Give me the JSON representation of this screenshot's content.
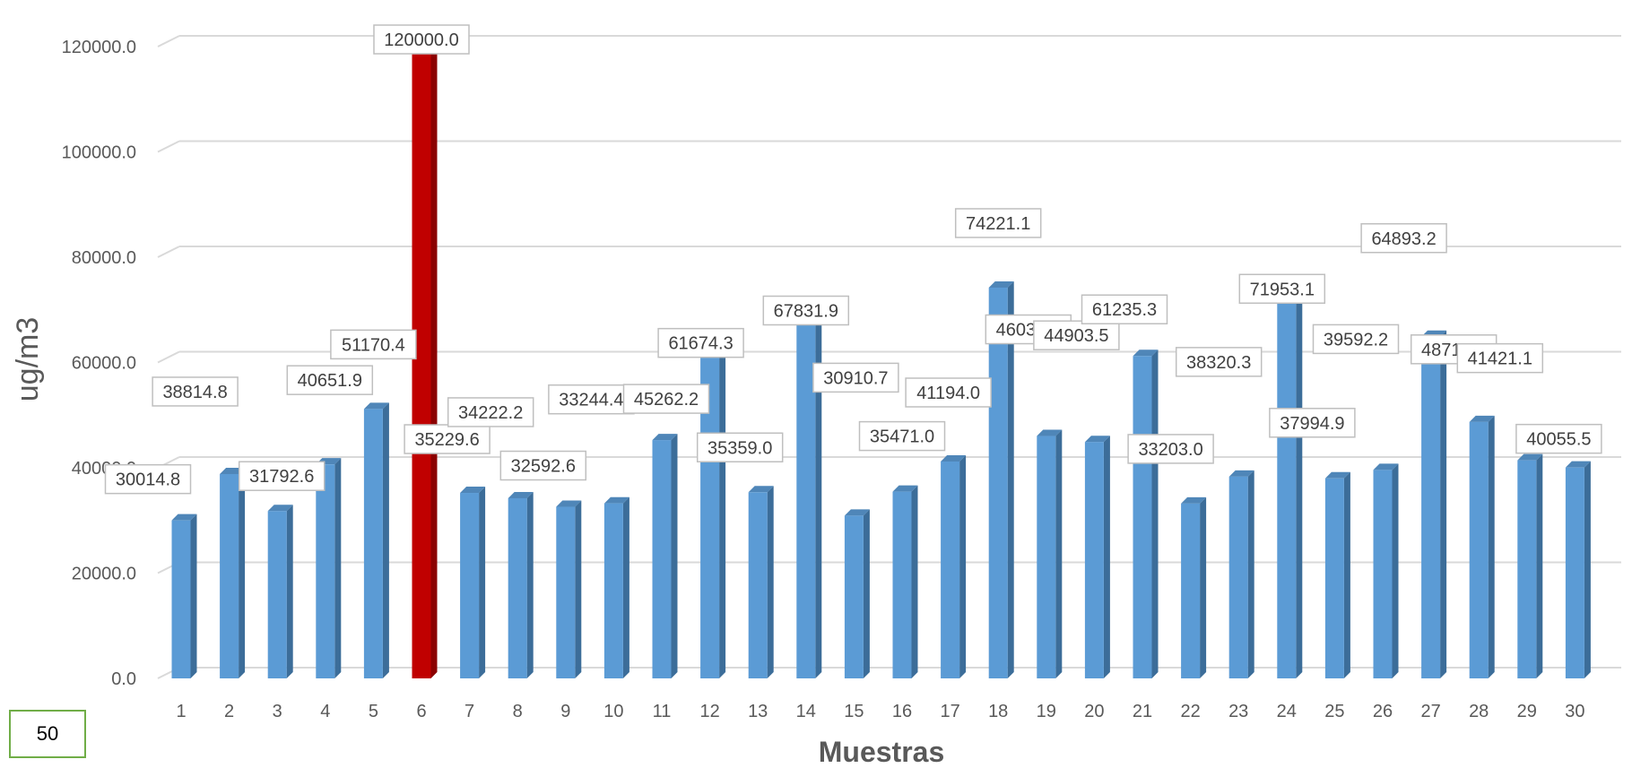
{
  "chart_data": {
    "type": "bar",
    "title": "",
    "xlabel": "Muestras",
    "ylabel": "ug/m3",
    "ylim": [
      0,
      120000
    ],
    "yticks": [
      "0.0",
      "20000.0",
      "40000.0",
      "60000.0",
      "80000.0",
      "100000.0",
      "120000.0"
    ],
    "grid": true,
    "legend": "none",
    "categories": [
      "1",
      "2",
      "3",
      "4",
      "5",
      "6",
      "7",
      "8",
      "9",
      "10",
      "11",
      "12",
      "13",
      "14",
      "15",
      "16",
      "17",
      "18",
      "19",
      "20",
      "21",
      "22",
      "23",
      "24",
      "25",
      "26",
      "27",
      "28",
      "29",
      "30"
    ],
    "values": [
      30014.8,
      38814.8,
      31792.6,
      40651.9,
      51170.4,
      120000.0,
      35229.6,
      34222.2,
      32592.6,
      33244.4,
      45262.2,
      61674.3,
      35359.0,
      67831.9,
      30910.7,
      35471.0,
      41194.0,
      74221.1,
      46037.4,
      44903.5,
      61235.3,
      33203.0,
      38320.3,
      71953.1,
      37994.9,
      39592.2,
      64893.2,
      48712.7,
      41421.1,
      40055.5
    ],
    "data_labels": [
      "30014.8",
      "38814.8",
      "31792.6",
      "40651.9",
      "51170.4",
      "120000.0",
      "35229.6",
      "34222.2",
      "32592.6",
      "33244.4",
      "45262.2",
      "61674.3",
      "35359.0",
      "67831.9",
      "30910.7",
      "35471.0",
      "41194.0",
      "74221.1",
      "46037.4",
      "44903.5",
      "61235.3",
      "33203.0",
      "38320.3",
      "71953.1",
      "37994.9",
      "39592.2",
      "64893.2",
      "48712.7",
      "41421.1",
      "40055.5"
    ],
    "highlight_index": 5,
    "colors": {
      "bar": "#5b9bd5",
      "highlight": "#c00000",
      "grid": "#d9d9d9",
      "text": "#595959",
      "box_border": "#70ad47"
    }
  },
  "page_number": "50"
}
